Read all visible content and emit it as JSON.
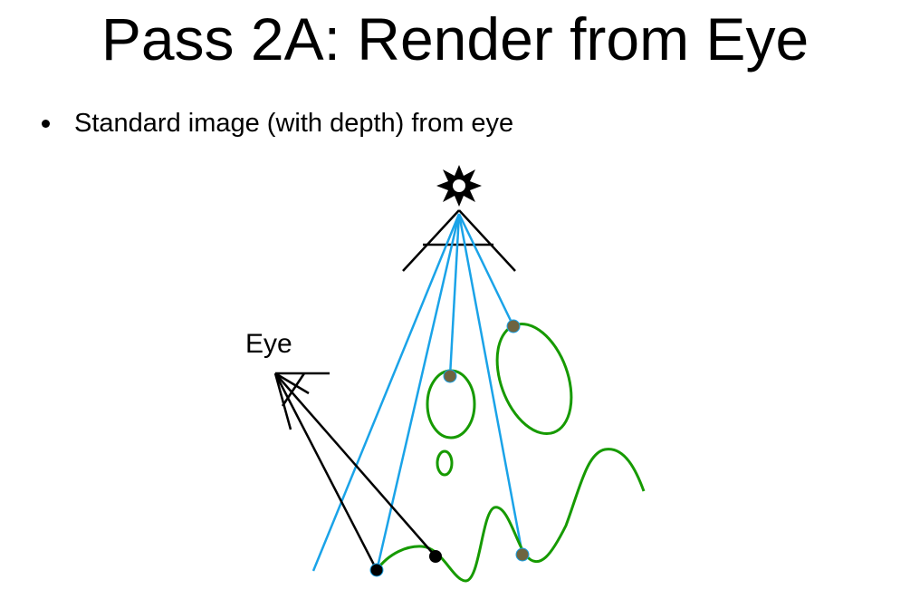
{
  "slide": {
    "title": "Pass 2A: Render from Eye",
    "bullets": [
      "Standard image (with depth) from eye"
    ]
  },
  "diagram": {
    "eye_label": "Eye",
    "colors": {
      "light_rays": "#1aa3e8",
      "geometry": "#169a00",
      "sample_points": "#6e6440",
      "eye_rays": "#000000",
      "light_icon": "#000000"
    }
  }
}
